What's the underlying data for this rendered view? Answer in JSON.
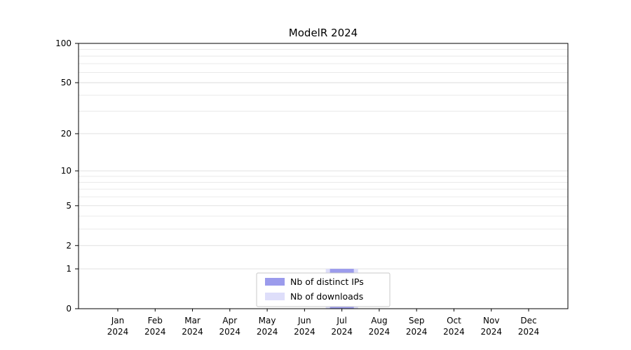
{
  "chart_data": {
    "type": "bar",
    "title": "ModelR 2024",
    "categories": [
      {
        "month": "Jan",
        "year": "2024"
      },
      {
        "month": "Feb",
        "year": "2024"
      },
      {
        "month": "Mar",
        "year": "2024"
      },
      {
        "month": "Apr",
        "year": "2024"
      },
      {
        "month": "May",
        "year": "2024"
      },
      {
        "month": "Jun",
        "year": "2024"
      },
      {
        "month": "Jul",
        "year": "2024"
      },
      {
        "month": "Aug",
        "year": "2024"
      },
      {
        "month": "Sep",
        "year": "2024"
      },
      {
        "month": "Oct",
        "year": "2024"
      },
      {
        "month": "Nov",
        "year": "2024"
      },
      {
        "month": "Dec",
        "year": "2024"
      }
    ],
    "series": [
      {
        "name": "Nb of distinct IPs",
        "color": "#9b9bec",
        "values": [
          0,
          0,
          0,
          0,
          0,
          0,
          1,
          0,
          0,
          0,
          0,
          0
        ]
      },
      {
        "name": "Nb of downloads",
        "color": "#dedefa",
        "values": [
          0,
          0,
          0,
          0,
          0,
          0,
          1,
          0,
          0,
          0,
          0,
          0
        ]
      }
    ],
    "yticks": [
      0,
      1,
      2,
      5,
      10,
      20,
      50,
      100
    ],
    "minor_gridlines": [
      1,
      2,
      3,
      4,
      5,
      6,
      7,
      8,
      9,
      10,
      20,
      30,
      40,
      50,
      60,
      70,
      80,
      90,
      100
    ],
    "scale": "log1p",
    "ylim": [
      0,
      100
    ],
    "xlabel": "",
    "ylabel": "",
    "grid": true,
    "legend_position": "bottom-center",
    "colors": {
      "background": "#ffffff",
      "grid_minor": "#e7e7e7",
      "grid_major": "#dcdcdc",
      "axis": "#000000",
      "legend_border": "#c9c9c9",
      "legend_fill": "#ffffff"
    }
  }
}
